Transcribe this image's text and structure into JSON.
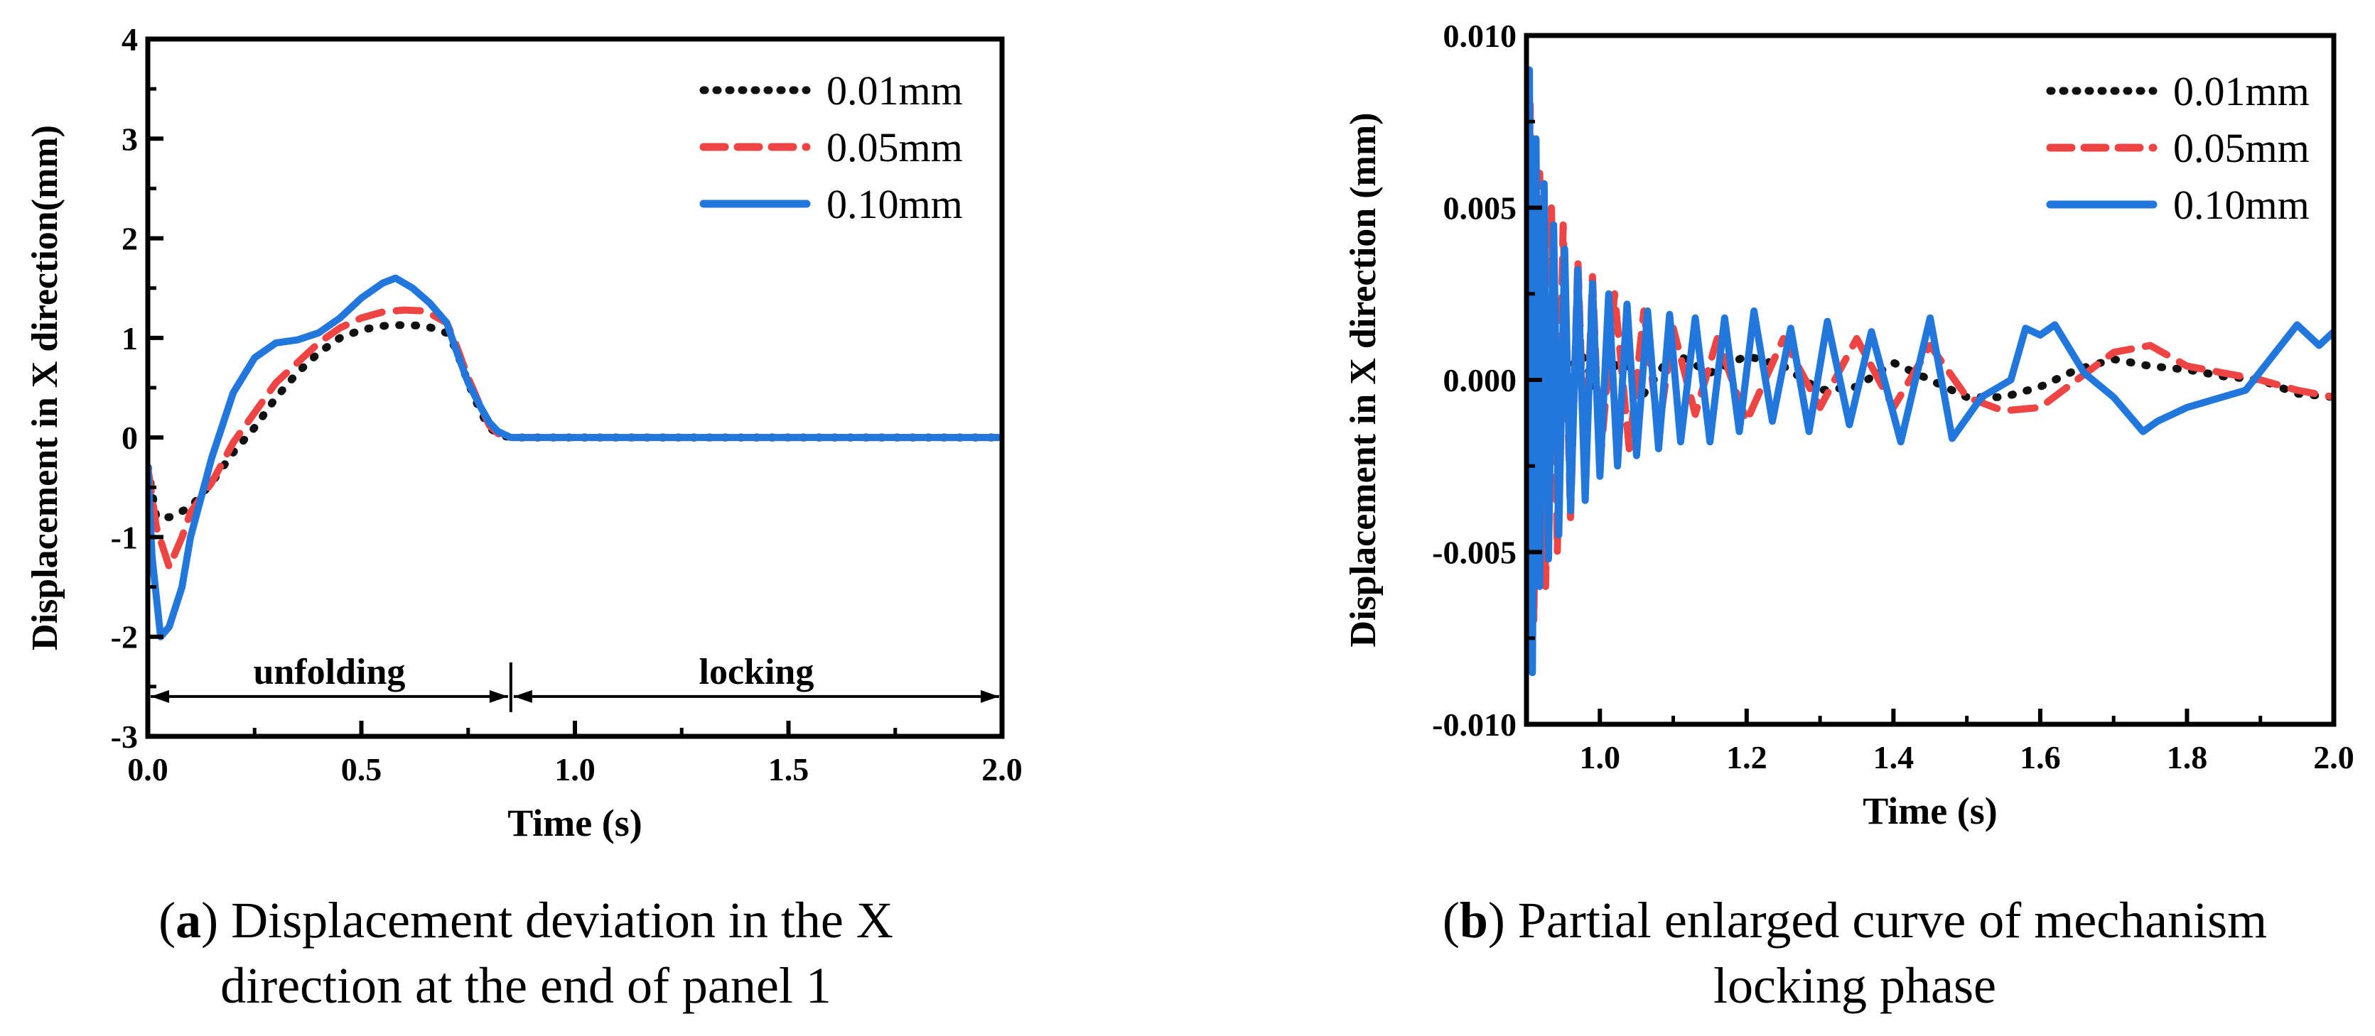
{
  "colors": {
    "s001": "#111111",
    "s005": "#EE4444",
    "s010": "#2277DD",
    "axis": "#000000"
  },
  "chart_data": [
    {
      "type": "line",
      "panel": "a",
      "title": "",
      "xlabel": "Time (s)",
      "ylabel": "Displacement in X direction(mm)",
      "xlim": [
        0,
        2.0
      ],
      "ylim": [
        -3,
        4
      ],
      "xticks": [
        0.0,
        0.5,
        1.0,
        1.5,
        2.0
      ],
      "xtick_labels": [
        "0.0",
        "0.5",
        "1.0",
        "1.5",
        "2.0"
      ],
      "yticks": [
        -3,
        -2,
        -1,
        0,
        1,
        2,
        3,
        4
      ],
      "ytick_labels": [
        "-3",
        "-2",
        "-1",
        "0",
        "1",
        "2",
        "3",
        "4"
      ],
      "grid": false,
      "legend_position": "top-right",
      "annotations": [
        {
          "text": "unfolding",
          "x_range": [
            0.0,
            0.85
          ],
          "y": -2.6
        },
        {
          "text": "locking",
          "x_range": [
            0.85,
            2.0
          ],
          "y": -2.6
        }
      ],
      "series": [
        {
          "name": "0.01mm",
          "style": "dotted",
          "color": "#111111",
          "x": [
            0.0,
            0.02,
            0.05,
            0.1,
            0.15,
            0.2,
            0.25,
            0.3,
            0.35,
            0.4,
            0.45,
            0.5,
            0.55,
            0.6,
            0.65,
            0.7,
            0.72,
            0.75,
            0.78,
            0.8,
            0.82,
            0.85,
            0.9,
            1.0,
            1.5,
            2.0
          ],
          "y": [
            -0.3,
            -0.8,
            -0.8,
            -0.7,
            -0.45,
            -0.15,
            0.1,
            0.4,
            0.65,
            0.85,
            1.0,
            1.08,
            1.12,
            1.13,
            1.12,
            1.05,
            0.9,
            0.55,
            0.25,
            0.1,
            0.03,
            0.0,
            0.0,
            0.0,
            0.0,
            0.0
          ]
        },
        {
          "name": "0.05mm",
          "style": "dashed",
          "color": "#EE4444",
          "x": [
            0.0,
            0.02,
            0.05,
            0.08,
            0.1,
            0.15,
            0.2,
            0.25,
            0.3,
            0.35,
            0.4,
            0.45,
            0.5,
            0.55,
            0.6,
            0.65,
            0.7,
            0.72,
            0.75,
            0.78,
            0.8,
            0.82,
            0.85,
            0.9,
            1.0,
            1.5,
            2.0
          ],
          "y": [
            -0.3,
            -0.9,
            -1.3,
            -1.0,
            -0.75,
            -0.45,
            -0.05,
            0.25,
            0.55,
            0.75,
            0.95,
            1.1,
            1.2,
            1.26,
            1.28,
            1.27,
            1.15,
            0.95,
            0.6,
            0.3,
            0.12,
            0.04,
            0.0,
            0.0,
            0.0,
            0.0,
            0.0
          ]
        },
        {
          "name": "0.10mm",
          "style": "solid",
          "color": "#2277DD",
          "x": [
            0.0,
            0.01,
            0.03,
            0.05,
            0.08,
            0.1,
            0.15,
            0.2,
            0.25,
            0.3,
            0.35,
            0.4,
            0.45,
            0.5,
            0.55,
            0.58,
            0.62,
            0.66,
            0.7,
            0.72,
            0.75,
            0.78,
            0.8,
            0.82,
            0.85,
            0.9,
            1.0,
            1.5,
            2.0
          ],
          "y": [
            -0.3,
            -1.2,
            -2.0,
            -1.9,
            -1.5,
            -1.0,
            -0.2,
            0.45,
            0.8,
            0.95,
            0.98,
            1.05,
            1.2,
            1.4,
            1.55,
            1.6,
            1.5,
            1.35,
            1.15,
            0.9,
            0.55,
            0.3,
            0.15,
            0.06,
            0.0,
            0.0,
            0.0,
            0.0,
            0.0
          ]
        }
      ]
    },
    {
      "type": "line",
      "panel": "b",
      "title": "",
      "xlabel": "Time (s)",
      "ylabel": "Displacement in X direction (mm)",
      "xlim": [
        0.9,
        2.0
      ],
      "ylim": [
        -0.01,
        0.01
      ],
      "xticks": [
        1.0,
        1.2,
        1.4,
        1.6,
        1.8,
        2.0
      ],
      "xtick_labels": [
        "1.0",
        "1.2",
        "1.4",
        "1.6",
        "1.8",
        "2.0"
      ],
      "yticks": [
        -0.01,
        -0.005,
        0.0,
        0.005,
        0.01
      ],
      "ytick_labels": [
        "-0.010",
        "-0.005",
        "0.000",
        "0.005",
        "0.010"
      ],
      "grid": false,
      "legend_position": "top-right",
      "series": [
        {
          "name": "0.01mm",
          "style": "dotted",
          "color": "#111111",
          "x": [
            0.9,
            0.905,
            0.91,
            0.92,
            0.93,
            0.95,
            0.97,
            1.0,
            1.03,
            1.06,
            1.1,
            1.15,
            1.2,
            1.25,
            1.3,
            1.35,
            1.4,
            1.45,
            1.5,
            1.55,
            1.6,
            1.65,
            1.7,
            1.75,
            1.8,
            1.85,
            1.9,
            1.95,
            2.0
          ],
          "y": [
            0.006,
            -0.004,
            0.003,
            -0.002,
            0.0015,
            -0.0012,
            0.001,
            -0.0005,
            0.0008,
            -0.0004,
            0.0008,
            0.0002,
            0.0007,
            0.0004,
            -0.0003,
            -0.0002,
            0.0005,
            0.0,
            -0.0005,
            -0.0005,
            -0.0002,
            0.0003,
            0.0006,
            0.0004,
            0.0003,
            0.0001,
            0.0,
            -0.0004,
            -0.0005
          ]
        },
        {
          "name": "0.05mm",
          "style": "dashed",
          "color": "#EE4444",
          "x": [
            0.9,
            0.905,
            0.91,
            0.918,
            0.926,
            0.934,
            0.942,
            0.95,
            0.96,
            0.97,
            0.98,
            0.99,
            1.0,
            1.02,
            1.04,
            1.06,
            1.08,
            1.1,
            1.13,
            1.16,
            1.2,
            1.25,
            1.3,
            1.35,
            1.4,
            1.45,
            1.5,
            1.55,
            1.6,
            1.65,
            1.7,
            1.75,
            1.8,
            1.85,
            1.9,
            1.95,
            2.0
          ],
          "y": [
            0.0,
            0.008,
            -0.007,
            0.006,
            -0.006,
            0.005,
            -0.005,
            0.0045,
            -0.004,
            0.0035,
            -0.003,
            0.003,
            -0.0025,
            0.0025,
            -0.002,
            0.002,
            -0.0015,
            0.0015,
            -0.001,
            0.0012,
            -0.0012,
            0.0012,
            -0.0008,
            0.0012,
            -0.0008,
            0.001,
            -0.0005,
            -0.0009,
            -0.0008,
            0.0,
            0.0008,
            0.001,
            0.0004,
            0.0002,
            0.0,
            -0.0003,
            -0.0005
          ]
        },
        {
          "name": "0.10mm",
          "style": "solid",
          "color": "#2277DD",
          "x": [
            0.9,
            0.904,
            0.908,
            0.913,
            0.918,
            0.924,
            0.93,
            0.937,
            0.944,
            0.952,
            0.96,
            0.97,
            0.98,
            0.99,
            1.0,
            1.012,
            1.024,
            1.037,
            1.05,
            1.065,
            1.08,
            1.095,
            1.11,
            1.13,
            1.15,
            1.17,
            1.19,
            1.21,
            1.235,
            1.26,
            1.285,
            1.31,
            1.34,
            1.37,
            1.41,
            1.45,
            1.48,
            1.52,
            1.56,
            1.58,
            1.6,
            1.62,
            1.66,
            1.7,
            1.74,
            1.76,
            1.8,
            1.88,
            1.95,
            1.98,
            2.0
          ],
          "y": [
            0.0,
            0.009,
            -0.0085,
            0.007,
            -0.006,
            0.0057,
            -0.0052,
            0.0045,
            -0.0045,
            0.0038,
            -0.0038,
            0.0032,
            -0.0035,
            0.0028,
            -0.0028,
            0.0025,
            -0.0025,
            0.0022,
            -0.0022,
            0.002,
            -0.002,
            0.0019,
            -0.0018,
            0.0018,
            -0.0018,
            0.0018,
            -0.0015,
            0.002,
            -0.0012,
            0.0015,
            -0.0015,
            0.0017,
            -0.0013,
            0.0014,
            -0.0018,
            0.0018,
            -0.0017,
            -0.0005,
            0.0,
            0.0015,
            0.0013,
            0.0016,
            0.0002,
            -0.0005,
            -0.0015,
            -0.0012,
            -0.0008,
            -0.0003,
            0.0016,
            0.001,
            0.0014
          ]
        }
      ]
    }
  ],
  "captions": {
    "a": {
      "label": "a",
      "line1": ") Displacement deviation in the X",
      "line2": "direction at the end of panel 1"
    },
    "b": {
      "label": "b",
      "line1": ") Partial enlarged curve of mechanism",
      "line2": "locking phase"
    }
  }
}
